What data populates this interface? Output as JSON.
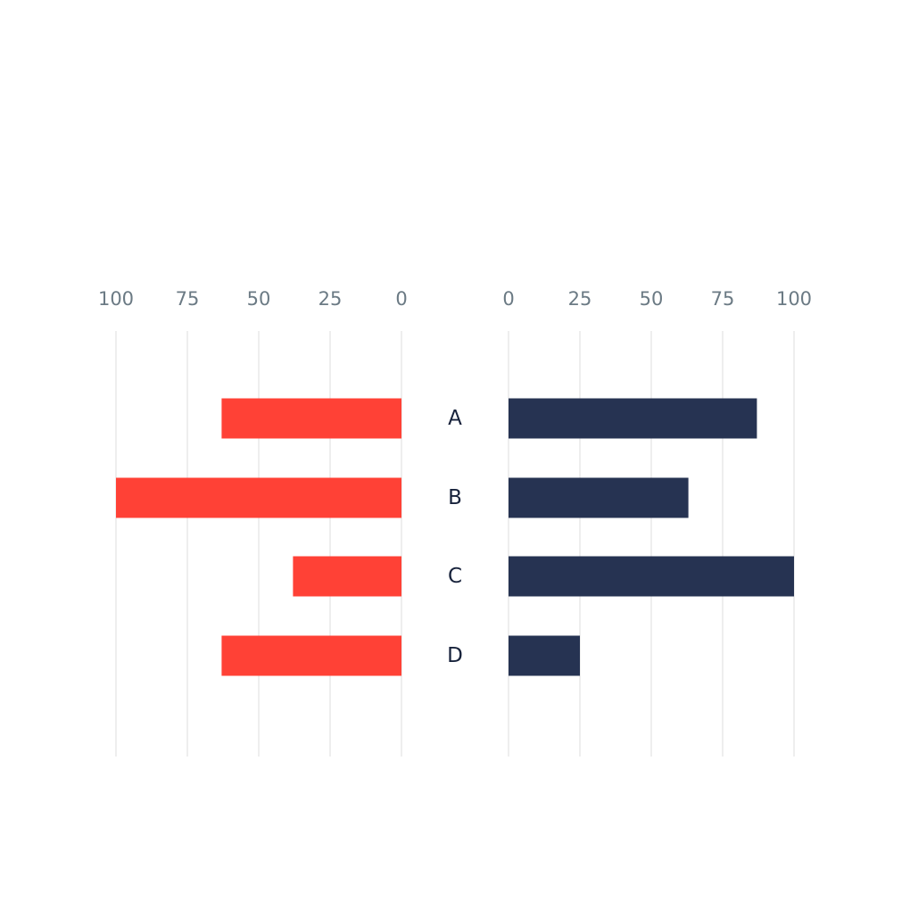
{
  "chart_data": {
    "type": "bar",
    "orientation": "horizontal",
    "layout": "butterfly",
    "title": "",
    "xlabel": "",
    "ylabel": "",
    "categories": [
      "A",
      "B",
      "C",
      "D"
    ],
    "xlim": [
      0,
      100
    ],
    "ticks": [
      "0",
      "25",
      "50",
      "75",
      "100"
    ],
    "grid": true,
    "series": [
      {
        "side": "left",
        "color": "#ff4136",
        "values": [
          63,
          100,
          38,
          63
        ]
      },
      {
        "side": "right",
        "color": "#263352",
        "values": [
          87,
          63,
          100,
          25
        ]
      }
    ]
  }
}
